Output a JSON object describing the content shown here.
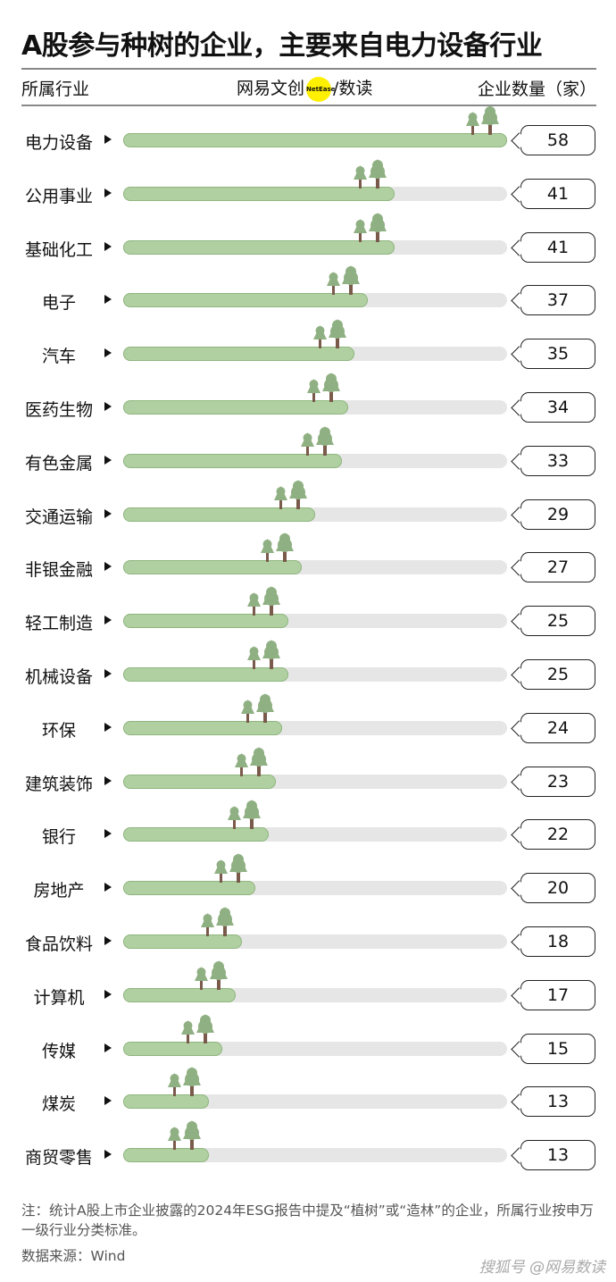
{
  "title": "A股参与种树的企业，主要来自电力设备行业",
  "header": {
    "left": "所属行业",
    "brand": "网易文创",
    "brand_badge": "NetEase",
    "brand_sep": "/",
    "brand_right": "数读",
    "right": "企业数量（家）"
  },
  "chart_data": {
    "type": "bar",
    "orientation": "horizontal",
    "title": "A股参与种树的企业，主要来自电力设备行业",
    "xlabel": "企业数量（家）",
    "ylabel": "所属行业",
    "xlim": [
      0,
      58
    ],
    "categories": [
      "电力设备",
      "公用事业",
      "基础化工",
      "电子",
      "汽车",
      "医药生物",
      "有色金属",
      "交通运输",
      "非银金融",
      "轻工制造",
      "机械设备",
      "环保",
      "建筑装饰",
      "银行",
      "房地产",
      "食品饮料",
      "计算机",
      "传媒",
      "煤炭",
      "商贸零售"
    ],
    "values": [
      58,
      41,
      41,
      37,
      35,
      34,
      33,
      29,
      27,
      25,
      25,
      24,
      23,
      22,
      20,
      18,
      17,
      15,
      13,
      13
    ],
    "bar_color": "#b1d0a2",
    "track_color": "#e6e6e6",
    "tree_color": "#8fb082",
    "trunk_color": "#7a5a4a"
  },
  "footer": {
    "note": "注：统计A股上市企业披露的2024年ESG报告中提及“植树”或“造林”的企业，所属行业按申万一级行业分类标准。",
    "source": "数据来源：Wind",
    "watermark": "搜狐号 @网易数读"
  }
}
